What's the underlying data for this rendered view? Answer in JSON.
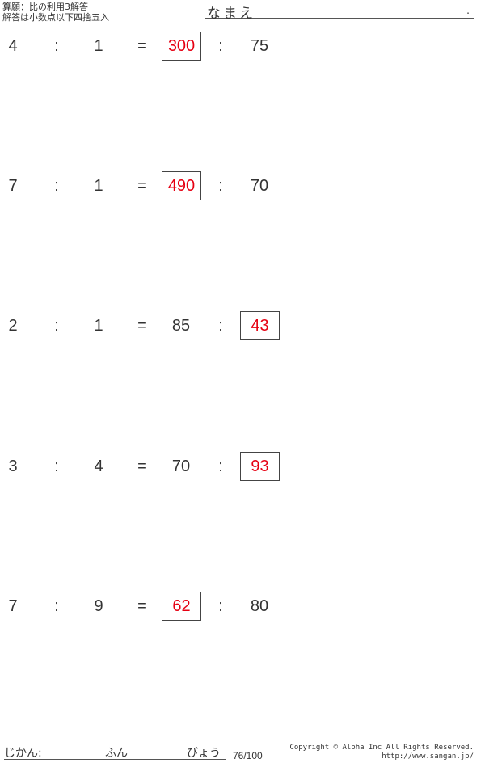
{
  "header": {
    "title": "算願：比の利用3解答",
    "subtitle": "解答は小数点以下四捨五入",
    "name_label": "なまえ",
    "name_dot": "."
  },
  "problems": [
    {
      "a": "4",
      "b": "1",
      "c": "300",
      "d": "75",
      "answer": "c"
    },
    {
      "a": "7",
      "b": "1",
      "c": "490",
      "d": "70",
      "answer": "c"
    },
    {
      "a": "2",
      "b": "1",
      "c": "85",
      "d": "43",
      "answer": "d"
    },
    {
      "a": "3",
      "b": "4",
      "c": "70",
      "d": "93",
      "answer": "d"
    },
    {
      "a": "7",
      "b": "9",
      "c": "62",
      "d": "80",
      "answer": "c"
    }
  ],
  "symbols": {
    "colon": ":",
    "equals": "="
  },
  "footer": {
    "time_label": "じかん:",
    "minutes_label": "ふん",
    "seconds_label": "びょう",
    "score": "76/100",
    "copyright": "Copyright © Alpha Inc All Rights Reserved.",
    "url": "http://www.sangan.jp/"
  },
  "colors": {
    "answer": "#e60012",
    "text": "#333333"
  }
}
